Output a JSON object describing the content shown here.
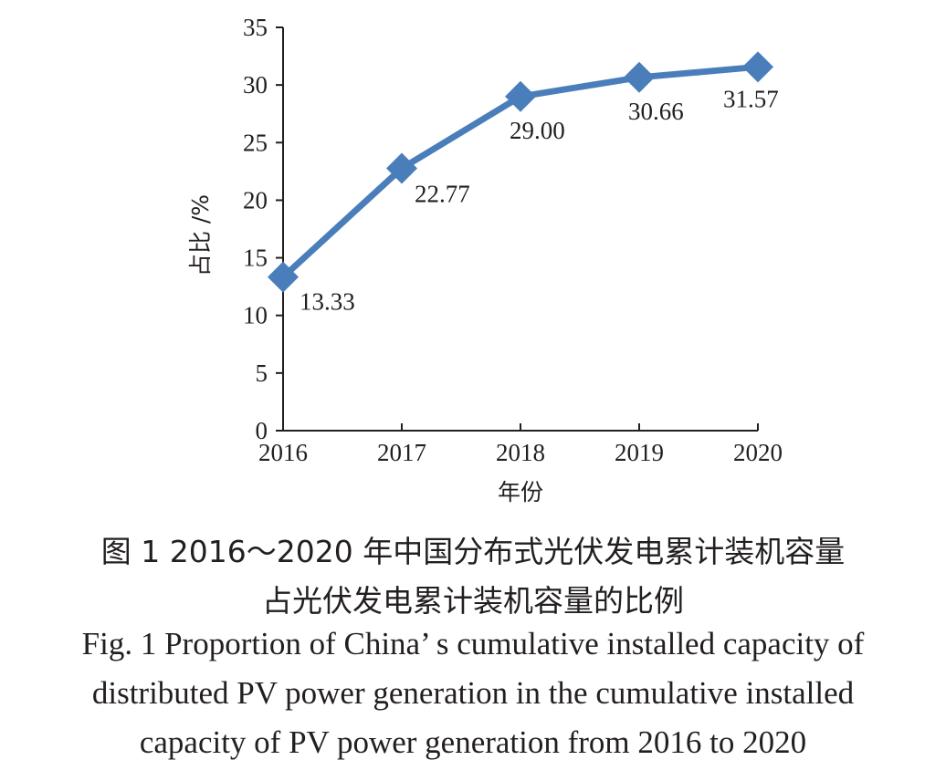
{
  "chart_data": {
    "type": "line",
    "categories": [
      "2016",
      "2017",
      "2018",
      "2019",
      "2020"
    ],
    "series": [
      {
        "values": [
          13.33,
          22.77,
          29.0,
          30.66,
          31.57
        ],
        "data_labels": [
          "13.33",
          "22.77",
          "29.00",
          "30.66",
          "31.57"
        ]
      }
    ],
    "xlabel": "年份",
    "ylabel": "占比 /%",
    "ylim": [
      0,
      35
    ],
    "yticks": [
      0,
      5,
      10,
      15,
      20,
      25,
      30,
      35
    ],
    "grid": false,
    "legend": "none",
    "marker": "diamond",
    "colors": {
      "series": "#4a7ebb",
      "axis": "#231f20"
    }
  },
  "caption": {
    "zh_line1": "图 1  2016～2020 年中国分布式光伏发电累计装机容量",
    "zh_line2": "占光伏发电累计装机容量的比例",
    "en_line1": "Fig. 1  Proportion of China’ s cumulative installed capacity of",
    "en_line2": "distributed PV power generation in the cumulative installed",
    "en_line3": "capacity of PV power generation from 2016 to 2020"
  }
}
